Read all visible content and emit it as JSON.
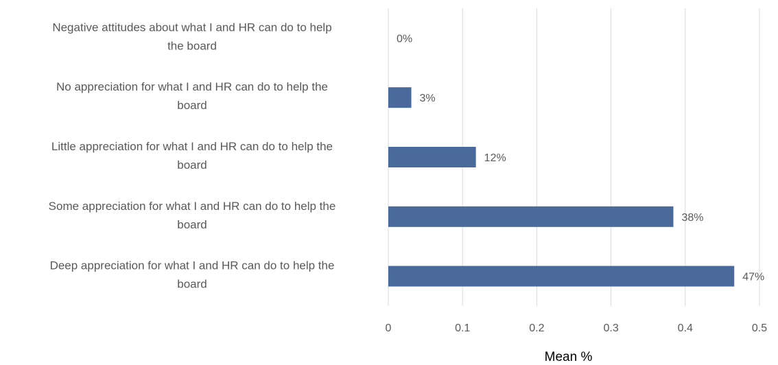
{
  "chart_data": {
    "type": "bar",
    "orientation": "horizontal",
    "categories": [
      [
        "Negative attitudes about what I and HR can do to help",
        "the board"
      ],
      [
        "No appreciation for what I and HR can do to help the",
        "board"
      ],
      [
        "Little appreciation for what I and HR can do to help the",
        "board"
      ],
      [
        "Some appreciation for what I and HR can do to help the",
        "board"
      ],
      [
        "Deep appreciation for what I and HR can do to help the",
        "board"
      ]
    ],
    "values": [
      0.0,
      0.031,
      0.118,
      0.384,
      0.466
    ],
    "data_labels": [
      "0%",
      "3%",
      "12%",
      "38%",
      "47%"
    ],
    "xlabel": "Mean %",
    "ylabel": "",
    "xlim": [
      0,
      0.5
    ],
    "xticks": [
      0,
      0.1,
      0.2,
      0.3,
      0.4,
      0.5
    ],
    "xtick_labels": [
      "0",
      "0.1",
      "0.2",
      "0.3",
      "0.4",
      "0.5"
    ],
    "grid": "vertical",
    "legend": "none",
    "colors": {
      "bar": "#4a6a9c",
      "grid": "#d9d9d9",
      "text": "#595959"
    }
  }
}
